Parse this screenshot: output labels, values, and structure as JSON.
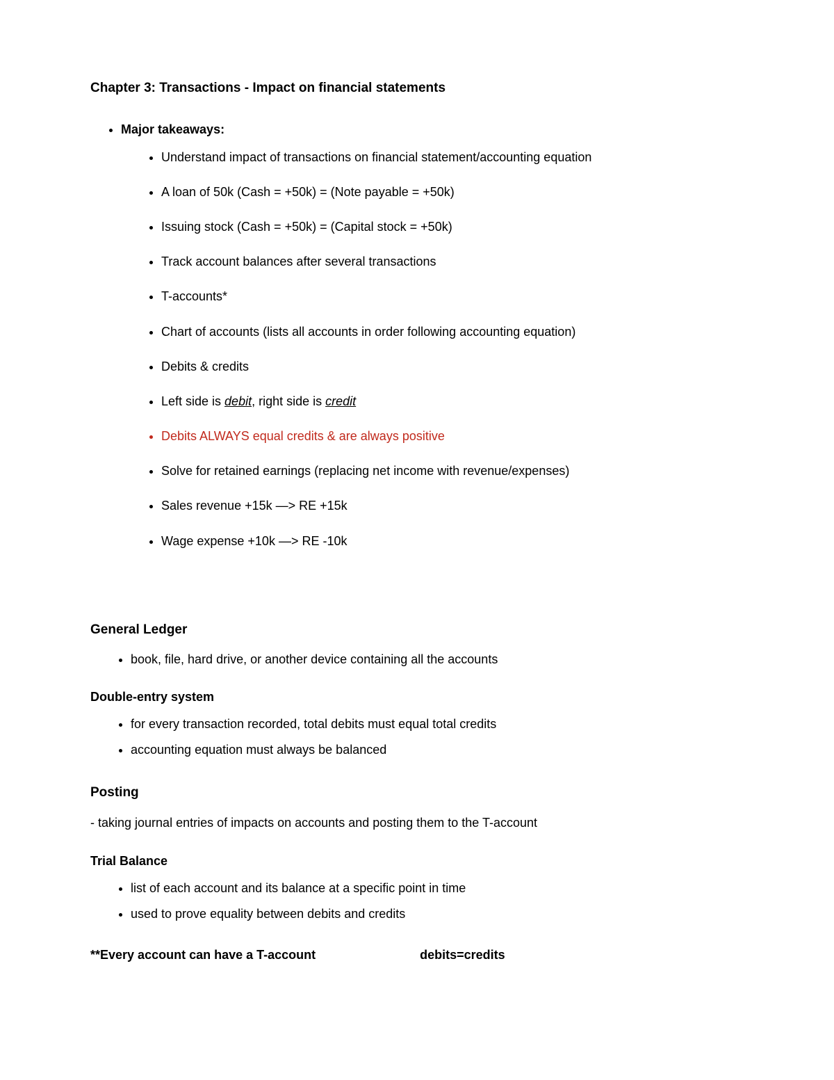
{
  "colors": {
    "background": "#ffffff",
    "text": "#000000",
    "highlight": "#c12a1d"
  },
  "typography": {
    "font_family": "Arial, Helvetica, sans-serif",
    "title_fontsize_pt": 14,
    "body_fontsize_pt": 13,
    "title_weight": "bold"
  },
  "title": "Chapter 3: Transactions - Impact on financial statements",
  "major_takeaways": {
    "heading": "Major takeaways:",
    "items": [
      "Understand impact of transactions on financial statement/accounting equation",
      "A loan of 50k (Cash = +50k) = (Note payable = +50k)",
      "Issuing stock (Cash = +50k) = (Capital stock = +50k)",
      "Track account balances after several transactions",
      "T-accounts*",
      "Chart of accounts (lists all accounts in order following accounting equation)",
      "Debits & credits"
    ],
    "debit_credit_line": {
      "prefix": "Left side is ",
      "debit": "debit",
      "middle": ", right side is ",
      "credit": "credit"
    },
    "red_line": "Debits ALWAYS equal credits & are always positive",
    "items_after": [
      "Solve for retained earnings (replacing net income with revenue/expenses)",
      "Sales revenue +15k —> RE +15k",
      "Wage expense +10k —> RE -10k"
    ]
  },
  "general_ledger": {
    "heading": "General Ledger",
    "items": [
      "book, file, hard drive, or another device containing all the accounts"
    ]
  },
  "double_entry": {
    "heading": "Double-entry system",
    "items": [
      "for every transaction recorded, total debits must equal total credits",
      "accounting equation must always be balanced"
    ]
  },
  "posting": {
    "heading": "Posting",
    "line": "- taking journal entries of impacts on accounts and posting them to the T-account"
  },
  "trial_balance": {
    "heading": "Trial Balance",
    "items": [
      "list of each account and its balance at a specific point in time",
      "used to prove equality between debits and credits"
    ]
  },
  "footer": {
    "left": "**Every account can have a T-account",
    "right": "debits=credits"
  }
}
